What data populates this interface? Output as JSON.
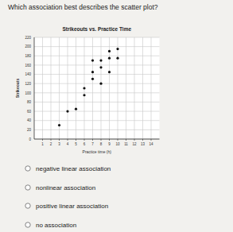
{
  "question": "Which association best describes the scatter plot?",
  "options": [
    "negative linear association",
    "nonlinear association",
    "positive linear association",
    "no association"
  ],
  "chart_data": {
    "type": "scatter",
    "title": "Strikeouts vs. Practice Time",
    "x_label": "Practice time (h)",
    "y_label": "Strikeouts",
    "series": [
      {
        "name": "Strikeouts",
        "color": "#111111",
        "marker": "circle",
        "x": [
          3,
          4,
          5,
          6,
          6,
          8,
          7,
          7,
          9,
          8,
          7,
          8,
          9,
          10,
          9,
          10
        ],
        "values": [
          30,
          60,
          65,
          95,
          110,
          120,
          130,
          145,
          145,
          155,
          170,
          170,
          175,
          175,
          190,
          195
        ]
      }
    ],
    "xlim": [
      0,
      15
    ],
    "xticks": [
      1,
      2,
      3,
      4,
      5,
      6,
      7,
      8,
      9,
      10,
      11,
      12,
      13,
      14
    ],
    "ylim": [
      0,
      220
    ],
    "yticks": [
      0,
      20,
      40,
      60,
      80,
      100,
      120,
      140,
      160,
      180,
      200,
      220
    ],
    "grid": true
  }
}
